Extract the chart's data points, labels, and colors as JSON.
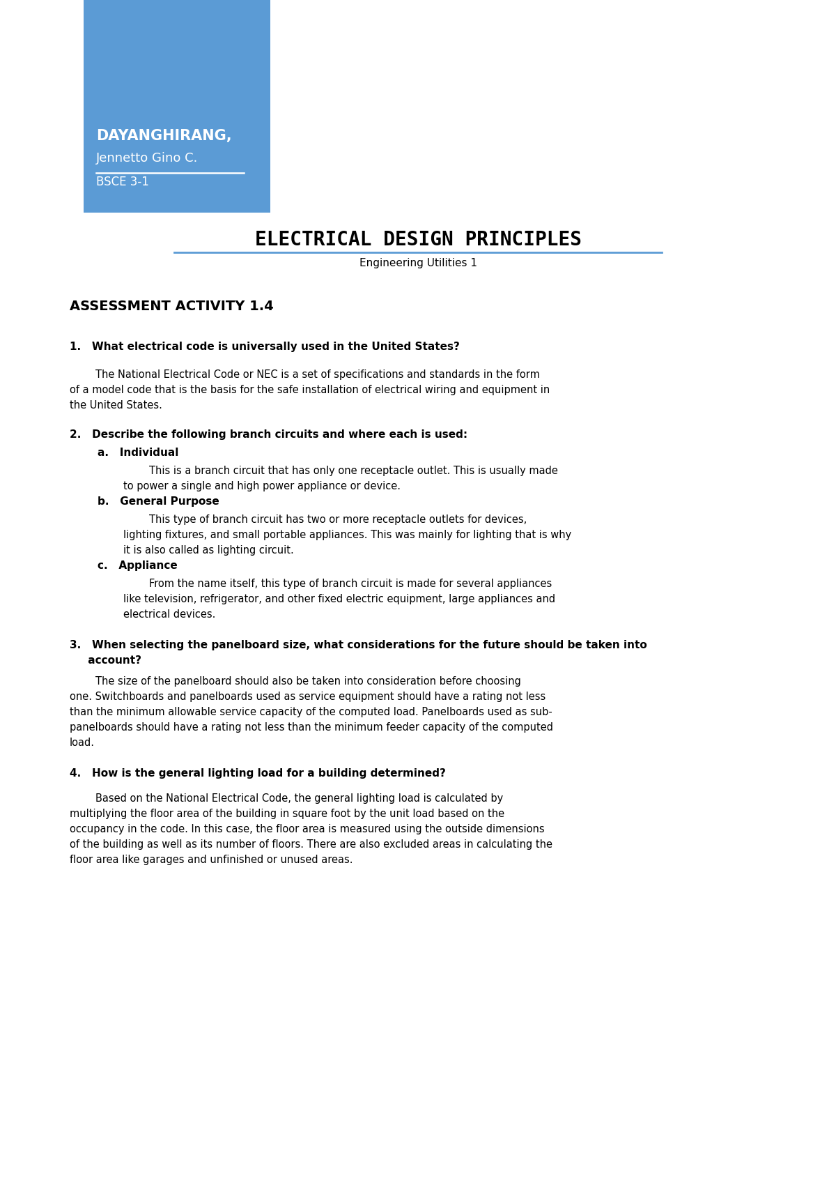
{
  "bg_color": "#ffffff",
  "header_box_color": "#5b9bd5",
  "name_line1": "DAYANGHIRANG,",
  "name_line2": "Jennetto Gino C.",
  "course": "BSCE 3-1",
  "main_title": "ELECTRICAL DESIGN PRINCIPLES",
  "subtitle": "Engineering Utilities 1",
  "section_title": "ASSESSMENT ACTIVITY 1.4",
  "q1_label": "1.   What electrical code is universally used in the United States?",
  "q1_lines": [
    "        The National Electrical Code or NEC is a set of specifications and standards in the form",
    "of a model code that is the basis for the safe installation of electrical wiring and equipment in",
    "the United States."
  ],
  "q2_label": "2.   Describe the following branch circuits and where each is used:",
  "q2a_label": "a.   Individual",
  "q2a_lines": [
    "                This is a branch circuit that has only one receptacle outlet. This is usually made",
    "        to power a single and high power appliance or device."
  ],
  "q2b_label": "b.   General Purpose",
  "q2b_lines": [
    "                This type of branch circuit has two or more receptacle outlets for devices,",
    "        lighting fixtures, and small portable appliances. This was mainly for lighting that is why",
    "        it is also called as lighting circuit."
  ],
  "q2c_label": "c.   Appliance",
  "q2c_lines": [
    "                From the name itself, this type of branch circuit is made for several appliances",
    "        like television, refrigerator, and other fixed electric equipment, large appliances and",
    "        electrical devices."
  ],
  "q3_label_lines": [
    "3.   When selecting the panelboard size, what considerations for the future should be taken into",
    "     account?"
  ],
  "q3_lines": [
    "        The size of the panelboard should also be taken into consideration before choosing",
    "one. Switchboards and panelboards used as service equipment should have a rating not less",
    "than the minimum allowable service capacity of the computed load. Panelboards used as sub-",
    "panelboards should have a rating not less than the minimum feeder capacity of the computed",
    "load."
  ],
  "q4_label": "4.   How is the general lighting load for a building determined?",
  "q4_lines": [
    "        Based on the National Electrical Code, the general lighting load is calculated by",
    "multiplying the floor area of the building in square foot by the unit load based on the",
    "occupancy in the code. In this case, the floor area is measured using the outside dimensions",
    "of the building as well as its number of floors. There are also excluded areas in calculating the",
    "floor area like garages and unfinished or unused areas."
  ]
}
